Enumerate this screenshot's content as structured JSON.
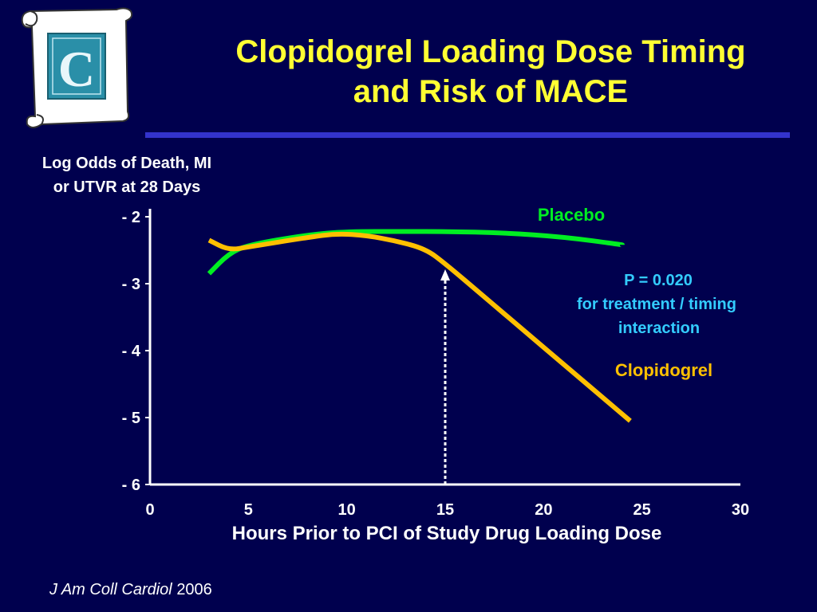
{
  "slide": {
    "title_line1": "Clopidogrel Loading Dose Timing",
    "title_line2": "and Risk of MACE",
    "citation_journal": "J Am Coll Cardiol",
    "citation_year": "2006"
  },
  "chart_data": {
    "type": "line",
    "title": "",
    "ylabel_line1": "Log Odds of Death, MI",
    "ylabel_line2": "or UTVR at 28 Days",
    "xlabel": "Hours Prior to PCI of Study Drug Loading Dose",
    "xlim": [
      0,
      30
    ],
    "ylim": [
      -6,
      -2
    ],
    "x_ticks": [
      "0",
      "5",
      "10",
      "15",
      "20",
      "25",
      "30"
    ],
    "y_ticks": [
      "- 2",
      "- 3",
      "- 4",
      "- 5",
      "- 6"
    ],
    "series": [
      {
        "name": "Placebo",
        "color": "#00ee22",
        "x": [
          3,
          4,
          5,
          8,
          10,
          13,
          15,
          18,
          21,
          24
        ],
        "y": [
          -2.85,
          -2.55,
          -2.42,
          -2.27,
          -2.22,
          -2.22,
          -2.22,
          -2.24,
          -2.3,
          -2.42
        ]
      },
      {
        "name": "Clopidogrel",
        "color": "#ffc000",
        "x": [
          3,
          4,
          5,
          8,
          9.5,
          11,
          12.5,
          14,
          15,
          17,
          19,
          21,
          23,
          24.4
        ],
        "y": [
          -2.35,
          -2.5,
          -2.45,
          -2.31,
          -2.25,
          -2.28,
          -2.36,
          -2.48,
          -2.7,
          -3.2,
          -3.7,
          -4.2,
          -4.7,
          -5.05
        ]
      }
    ],
    "marker_x": 15,
    "annotation": {
      "p_value": "P = 0.020",
      "line2": "for treatment / timing",
      "line3": "interaction"
    },
    "colors": {
      "background": "#00004e",
      "axis": "#ffffff",
      "title": "#ffff33",
      "annotation": "#33ccff"
    }
  }
}
